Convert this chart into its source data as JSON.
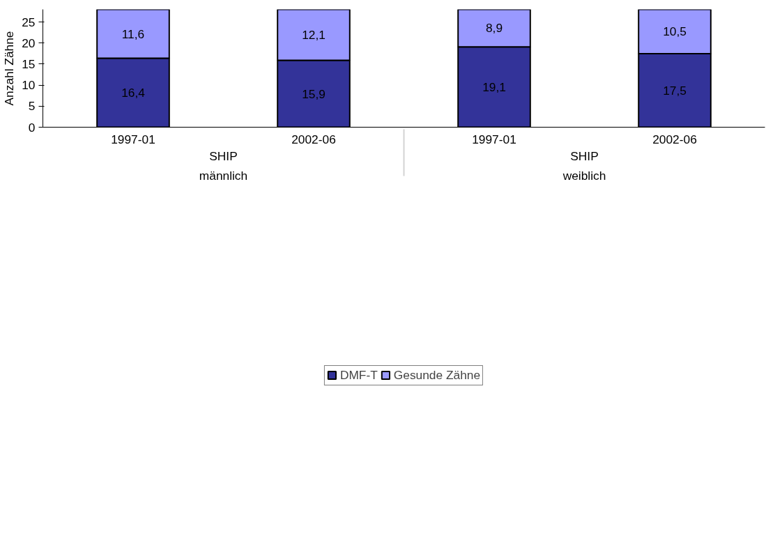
{
  "chart_data": {
    "type": "bar",
    "stacked": true,
    "ylabel": "Anzahl Zähne",
    "categories": [
      "1997-01",
      "2002-06",
      "1997-01",
      "2002-06"
    ],
    "annotations": [
      "SHIP",
      "männlich",
      "SHIP",
      "weiblich"
    ],
    "series": [
      {
        "name": "DMF-T",
        "color": "#333399",
        "values": [
          16.4,
          15.9,
          19.1,
          17.5
        ],
        "value_labels": [
          "16,4",
          "15,9",
          "19,1",
          "17,5"
        ]
      },
      {
        "name": "Gesunde Zähne",
        "color": "#9999ff",
        "values": [
          11.6,
          12.1,
          8.9,
          10.5
        ],
        "value_labels": [
          "11,6",
          "12,1",
          "8,9",
          "10,5"
        ]
      }
    ],
    "ylim": [
      0,
      28
    ],
    "yticks": [
      0,
      5,
      10,
      15,
      20,
      25
    ],
    "grid": false,
    "legend": "bottom"
  }
}
